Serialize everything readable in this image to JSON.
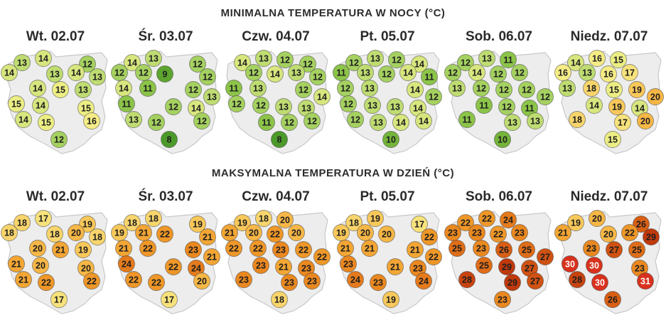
{
  "sections": [
    {
      "title": "MINIMALNA TEMPERATURA W NOCY (°C)",
      "days": [
        {
          "label": "Wt. 02.07",
          "values": [
            13,
            14,
            12,
            14,
            13,
            14,
            13,
            14,
            15,
            13,
            15,
            14,
            15,
            14,
            15,
            16,
            12
          ]
        },
        {
          "label": "Śr. 03.07",
          "values": [
            14,
            13,
            12,
            12,
            12,
            9,
            12,
            14,
            11,
            12,
            13,
            11,
            12,
            14,
            13,
            12,
            12,
            8
          ]
        },
        {
          "label": "Czw. 04.07",
          "values": [
            14,
            13,
            12,
            12,
            12,
            14,
            13,
            12,
            11,
            13,
            12,
            14,
            12,
            12,
            13,
            13,
            11,
            12,
            12,
            8
          ]
        },
        {
          "label": "Pt. 05.07",
          "values": [
            12,
            13,
            12,
            14,
            11,
            13,
            12,
            14,
            11,
            12,
            13,
            14,
            12,
            12,
            13,
            13,
            14,
            12,
            13,
            14,
            14,
            10
          ]
        },
        {
          "label": "Sob. 06.07",
          "values": [
            12,
            13,
            11,
            12,
            14,
            12,
            12,
            13,
            12,
            12,
            12,
            12,
            11,
            12,
            11,
            11,
            13,
            13,
            10
          ]
        },
        {
          "label": "Niedz. 07.07",
          "values": [
            14,
            16,
            15,
            16,
            13,
            16,
            17,
            13,
            18,
            15,
            19,
            20,
            14,
            19,
            14,
            18,
            17,
            20,
            15
          ]
        }
      ]
    },
    {
      "title": "MAKSYMALNA TEMPERATURA W DZIEŃ (°C)",
      "days": [
        {
          "label": "Wt. 02.07",
          "values": [
            18,
            17,
            19,
            18,
            18,
            20,
            18,
            20,
            21,
            19,
            21,
            20,
            20,
            21,
            22,
            22,
            17
          ]
        },
        {
          "label": "Śr. 03.07",
          "values": [
            18,
            18,
            19,
            19,
            21,
            22,
            21,
            21,
            22,
            23,
            21,
            24,
            22,
            24,
            22,
            22,
            20,
            17
          ]
        },
        {
          "label": "Czw. 04.07",
          "values": [
            19,
            18,
            20,
            21,
            20,
            22,
            20,
            22,
            22,
            23,
            22,
            22,
            23,
            21,
            23,
            23,
            23,
            23,
            18
          ]
        },
        {
          "label": "Pt. 05.07",
          "values": [
            18,
            19,
            17,
            19,
            20,
            20,
            22,
            21,
            21,
            21,
            22,
            23,
            21,
            23,
            24,
            23,
            24,
            19
          ]
        },
        {
          "label": "Sob. 06.07",
          "values": [
            22,
            22,
            24,
            23,
            23,
            22,
            23,
            25,
            23,
            26,
            25,
            27,
            25,
            29,
            27,
            28,
            29,
            27,
            23
          ]
        },
        {
          "label": "Niedz. 07.07",
          "values": [
            19,
            20,
            26,
            21,
            20,
            22,
            29,
            23,
            27,
            25,
            30,
            30,
            23,
            28,
            30,
            31,
            26
          ]
        }
      ]
    }
  ],
  "color_scale": [
    {
      "max": 8,
      "fill": "#4c9a2a",
      "text": "#1e1e1e"
    },
    {
      "max": 9,
      "fill": "#5da52f",
      "text": "#1e1e1e"
    },
    {
      "max": 10,
      "fill": "#74b43a",
      "text": "#1e1e1e"
    },
    {
      "max": 11,
      "fill": "#8cc449",
      "text": "#1e1e1e"
    },
    {
      "max": 12,
      "fill": "#a5d160",
      "text": "#1e1e1e"
    },
    {
      "max": 13,
      "fill": "#bfdc72",
      "text": "#1e1e1e"
    },
    {
      "max": 14,
      "fill": "#d8e67e",
      "text": "#1e1e1e"
    },
    {
      "max": 15,
      "fill": "#ecee84",
      "text": "#1e1e1e"
    },
    {
      "max": 16,
      "fill": "#f5ec86",
      "text": "#1e1e1e"
    },
    {
      "max": 17,
      "fill": "#f7e27c",
      "text": "#1e1e1e"
    },
    {
      "max": 18,
      "fill": "#f8d56c",
      "text": "#1e1e1e"
    },
    {
      "max": 19,
      "fill": "#f8c85a",
      "text": "#1e1e1e"
    },
    {
      "max": 20,
      "fill": "#f6b746",
      "text": "#1e1e1e"
    },
    {
      "max": 21,
      "fill": "#f3a634",
      "text": "#1e1e1e"
    },
    {
      "max": 22,
      "fill": "#ef9728",
      "text": "#1e1e1e"
    },
    {
      "max": 23,
      "fill": "#ea8820",
      "text": "#1e1e1e"
    },
    {
      "max": 24,
      "fill": "#e57b1c",
      "text": "#1e1e1e"
    },
    {
      "max": 25,
      "fill": "#df6d18",
      "text": "#1e1e1e"
    },
    {
      "max": 26,
      "fill": "#d85f14",
      "text": "#1e1e1e"
    },
    {
      "max": 27,
      "fill": "#d05212",
      "text": "#1e1e1e"
    },
    {
      "max": 28,
      "fill": "#c8440f",
      "text": "#1e1e1e"
    },
    {
      "max": 29,
      "fill": "#c0390c",
      "text": "#1e1e1e"
    },
    {
      "max": 31,
      "fill": "#d8311e",
      "text": "#ffffff"
    }
  ]
}
